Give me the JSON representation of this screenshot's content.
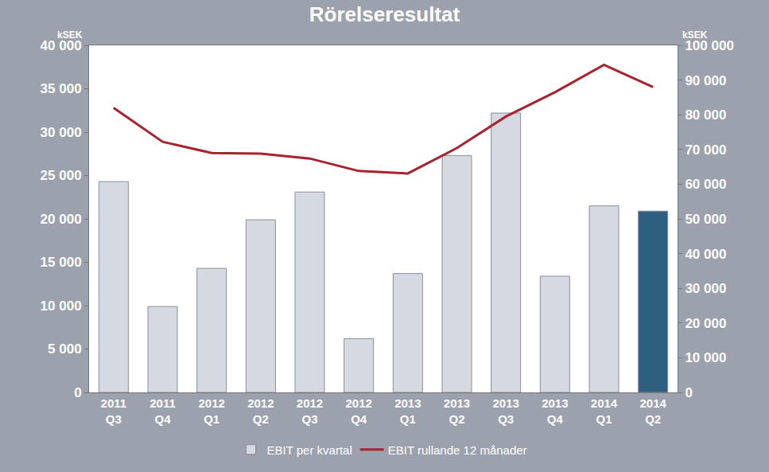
{
  "chart_data": {
    "type": "bar",
    "title": "Rörelseresultat",
    "y_label": "kSEK",
    "y2_label": "kSEK",
    "categories": [
      "2011\nQ3",
      "2011\nQ4",
      "2012\nQ1",
      "2012\nQ2",
      "2012\nQ3",
      "2012\nQ4",
      "2013\nQ1",
      "2013\nQ2",
      "2013\nQ3",
      "2013\nQ4",
      "2014\nQ1",
      "2014\nQ2"
    ],
    "series": [
      {
        "name": "EBIT per kvartal",
        "type": "bar",
        "colors": [
          "#d5dae2",
          "#d5dae2",
          "#d5dae2",
          "#d5dae2",
          "#d5dae2",
          "#d5dae2",
          "#d5dae2",
          "#d5dae2",
          "#d5dae2",
          "#d5dae2",
          "#d5dae2",
          "#2e5f7e"
        ],
        "color": "#d5dae2",
        "values": [
          24300,
          9900,
          14300,
          19900,
          23100,
          6200,
          13700,
          27300,
          32200,
          13400,
          21500,
          20900
        ]
      },
      {
        "name": "EBIT rullande 12 månader",
        "type": "line",
        "axis": "y2",
        "color": "#a8232e",
        "line_style": "solid",
        "values": [
          82000,
          72200,
          69000,
          68800,
          67400,
          63800,
          63100,
          70400,
          79500,
          86500,
          94400,
          88000
        ]
      }
    ],
    "ylim": [
      0,
      40000
    ],
    "yticks": [
      0,
      {
        "value": 5000,
        "label": "5 000"
      },
      {
        "value": 10000,
        "label": "10 000"
      },
      {
        "value": 15000,
        "label": "15 000"
      },
      {
        "value": 20000,
        "label": "20 000"
      },
      {
        "value": 25000,
        "label": "25 000"
      },
      {
        "value": 30000,
        "label": "30 000"
      },
      {
        "value": 35000,
        "label": "35 000"
      },
      {
        "value": 40000,
        "label": "40 000"
      }
    ],
    "y2lim": [
      0,
      100000
    ],
    "y2ticks": [
      0,
      {
        "value": 10000,
        "label": "10 000"
      },
      {
        "value": 20000,
        "label": "20 000"
      },
      {
        "value": 30000,
        "label": "30 000"
      },
      {
        "value": 40000,
        "label": "40 000"
      },
      {
        "value": 50000,
        "label": "50 000"
      },
      {
        "value": 60000,
        "label": "60 000"
      },
      {
        "value": 70000,
        "label": "70 000"
      },
      {
        "value": 80000,
        "label": "80 000"
      },
      {
        "value": 90000,
        "label": "90 000"
      },
      {
        "value": 100000,
        "label": "100 000"
      }
    ],
    "grid": false,
    "legend": "bottom"
  }
}
